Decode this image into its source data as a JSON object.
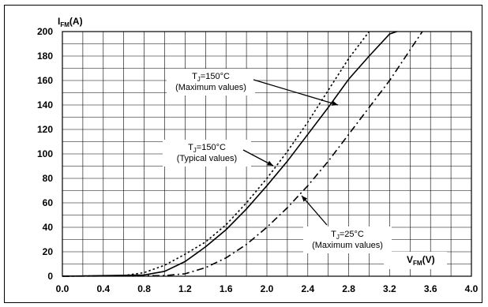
{
  "chart_data": {
    "type": "line",
    "xlabel": {
      "main": "V",
      "sub": "FM",
      "unit": "(V)"
    },
    "ylabel": {
      "main": "I",
      "sub": "FM",
      "unit": "(A)"
    },
    "xlim": [
      0,
      4
    ],
    "ylim": [
      0,
      200
    ],
    "x_ticks": [
      "0.0",
      "0.4",
      "0.8",
      "1.2",
      "1.6",
      "2.0",
      "2.4",
      "2.8",
      "3.2",
      "3.6",
      "4.0"
    ],
    "y_ticks": [
      "0",
      "20",
      "40",
      "60",
      "80",
      "100",
      "120",
      "140",
      "160",
      "180",
      "200"
    ],
    "grid": true,
    "series": [
      {
        "style": "dotted",
        "label_main": "T",
        "label_sub": "J",
        "label_rest": "=150°C",
        "label_note": "(Typical values)",
        "points": [
          [
            0.0,
            0
          ],
          [
            0.6,
            0.5
          ],
          [
            0.8,
            3
          ],
          [
            1.0,
            9
          ],
          [
            1.2,
            18
          ],
          [
            1.4,
            28
          ],
          [
            1.6,
            42
          ],
          [
            1.8,
            60
          ],
          [
            2.0,
            80
          ],
          [
            2.2,
            102
          ],
          [
            2.4,
            126
          ],
          [
            2.6,
            152
          ],
          [
            2.8,
            178
          ],
          [
            3.0,
            200
          ]
        ]
      },
      {
        "style": "solid",
        "label_main": "T",
        "label_sub": "J",
        "label_rest": "=150°C",
        "label_note": "(Maximum values)",
        "points": [
          [
            0.0,
            0
          ],
          [
            0.8,
            1
          ],
          [
            1.0,
            4
          ],
          [
            1.2,
            12
          ],
          [
            1.4,
            24
          ],
          [
            1.6,
            38
          ],
          [
            1.8,
            55
          ],
          [
            2.0,
            74
          ],
          [
            2.2,
            94
          ],
          [
            2.4,
            116
          ],
          [
            2.6,
            138
          ],
          [
            2.8,
            161
          ],
          [
            3.0,
            180
          ],
          [
            3.2,
            198
          ],
          [
            3.27,
            200
          ]
        ]
      },
      {
        "style": "dashdot",
        "label_main": "T",
        "label_sub": "J",
        "label_rest": "=25°C",
        "label_note": "(Maximum values)",
        "points": [
          [
            0.0,
            0
          ],
          [
            1.0,
            0.5
          ],
          [
            1.2,
            2
          ],
          [
            1.4,
            7
          ],
          [
            1.6,
            15
          ],
          [
            1.8,
            26
          ],
          [
            2.0,
            40
          ],
          [
            2.2,
            56
          ],
          [
            2.4,
            74
          ],
          [
            2.6,
            94
          ],
          [
            2.8,
            116
          ],
          [
            3.0,
            138
          ],
          [
            3.2,
            160
          ],
          [
            3.4,
            185
          ],
          [
            3.52,
            200
          ]
        ]
      }
    ]
  }
}
